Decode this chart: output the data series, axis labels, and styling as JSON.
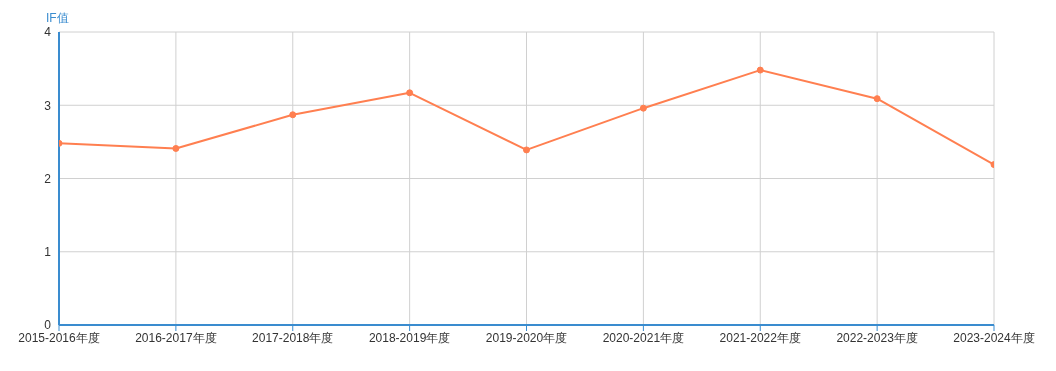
{
  "chart_data": {
    "type": "line",
    "ylabel": "IF值",
    "categories": [
      "2015-2016年度",
      "2016-2017年度",
      "2017-2018年度",
      "2018-2019年度",
      "2019-2020年度",
      "2020-2021年度",
      "2021-2022年度",
      "2022-2023年度",
      "2023-2024年度"
    ],
    "series": [
      {
        "color": "#ff7f50",
        "values": [
          2.48,
          2.41,
          2.87,
          3.17,
          2.39,
          2.96,
          3.48,
          3.09,
          2.19
        ]
      }
    ],
    "ylim": [
      0,
      4
    ],
    "yticks": [
      0,
      1,
      2,
      3,
      4
    ],
    "grid": true,
    "legend": false,
    "marker": "circle",
    "line_style": "solid"
  }
}
